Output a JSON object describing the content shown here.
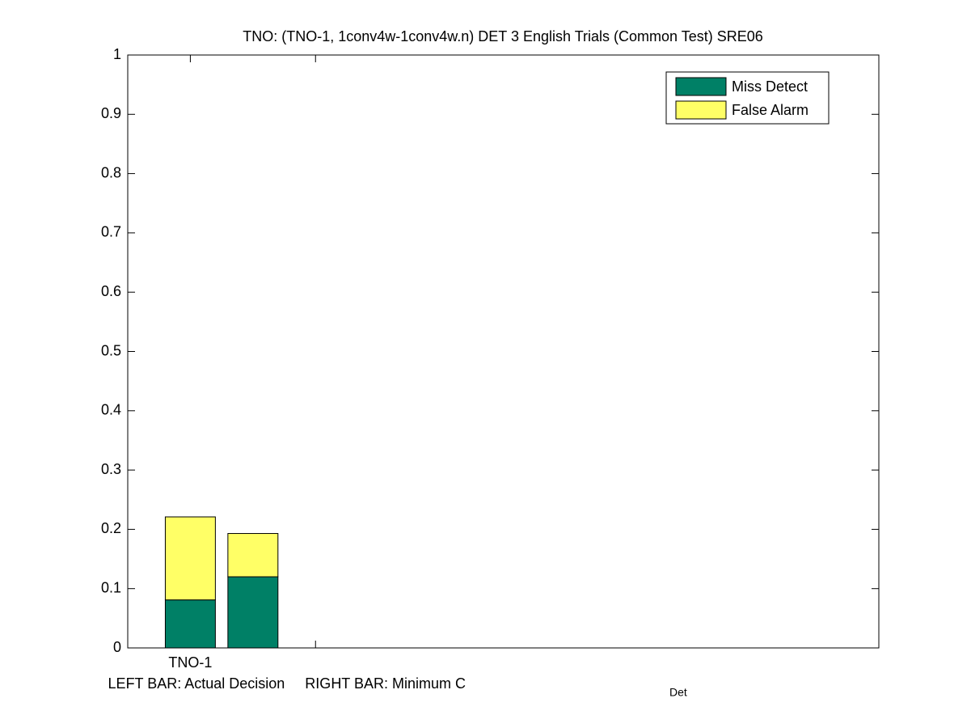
{
  "chart_data": {
    "type": "bar",
    "stacked": true,
    "title": "TNO: (TNO-1, 1conv4w-1conv4w.n) DET 3 English Trials (Common Test) SRE06",
    "xlabel": "LEFT BAR: Actual Decision     RIGHT BAR: Minimum C",
    "xlabel_subscript": "Det",
    "x": [
      1,
      1.5
    ],
    "series": [
      {
        "name": "Miss Detect",
        "color": "#008066",
        "values": [
          0.081,
          0.12
        ]
      },
      {
        "name": "False Alarm",
        "color": "#ffff66",
        "values": [
          0.14,
          0.073
        ]
      }
    ],
    "xlim": [
      0.5,
      6.5
    ],
    "xticks": [
      {
        "value": 1,
        "label": "TNO-1"
      },
      {
        "value": 2,
        "label": null
      }
    ],
    "ylim": [
      0,
      1
    ],
    "yticks": [
      0,
      0.1,
      0.2,
      0.3,
      0.4,
      0.5,
      0.6,
      0.7,
      0.8,
      0.9,
      1
    ],
    "grid": false,
    "legend": "upper right"
  }
}
